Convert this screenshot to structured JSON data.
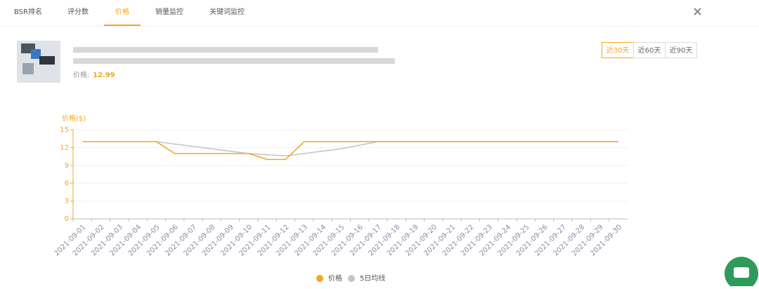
{
  "tabs": [
    "BSR排名",
    "评分数",
    "价格",
    "销量监控",
    "关键词监控"
  ],
  "product": {
    "price_label": "价格:",
    "price": 12.99
  },
  "range_buttons": [
    "近30天",
    "近60天",
    "近90天"
  ],
  "chart_data": {
    "type": "line",
    "y_axis_label": "价格($)",
    "categories": [
      "2021-09-01",
      "2021-09-02",
      "2021-09-03",
      "2021-09-04",
      "2021-09-05",
      "2021-09-06",
      "2021-09-07",
      "2021-09-08",
      "2021-09-09",
      "2021-09-10",
      "2021-09-11",
      "2021-09-12",
      "2021-09-13",
      "2021-09-14",
      "2021-09-15",
      "2021-09-16",
      "2021-09-17",
      "2021-09-18",
      "2021-09-19",
      "2021-09-20",
      "2021-09-21",
      "2021-09-22",
      "2021-09-23",
      "2021-09-24",
      "2021-09-25",
      "2021-09-26",
      "2021-09-27",
      "2021-09-28",
      "2021-09-29",
      "2021-09-30"
    ],
    "series": [
      {
        "name": "价格",
        "color": "#f5a623",
        "values": [
          13,
          13,
          13,
          13,
          13,
          11,
          11,
          11,
          11,
          11,
          10,
          10,
          13,
          13,
          13,
          13,
          13,
          13,
          13,
          13,
          13,
          13,
          13,
          13,
          13,
          13,
          13,
          13,
          13,
          13
        ]
      },
      {
        "name": "5日均线",
        "color": "#c0c4cc",
        "values": [
          null,
          null,
          null,
          null,
          13,
          12.6,
          12.2,
          11.8,
          11.4,
          11,
          10.8,
          10.6,
          11,
          11.4,
          11.8,
          12.4,
          13,
          13,
          13,
          13,
          13,
          13,
          13,
          13,
          13,
          13,
          13,
          13,
          13,
          13
        ]
      }
    ],
    "ylim": [
      0,
      15
    ],
    "yticks": [
      0,
      3,
      6,
      9,
      12,
      15
    ],
    "grid": true,
    "axis_color": "#f5a623"
  }
}
